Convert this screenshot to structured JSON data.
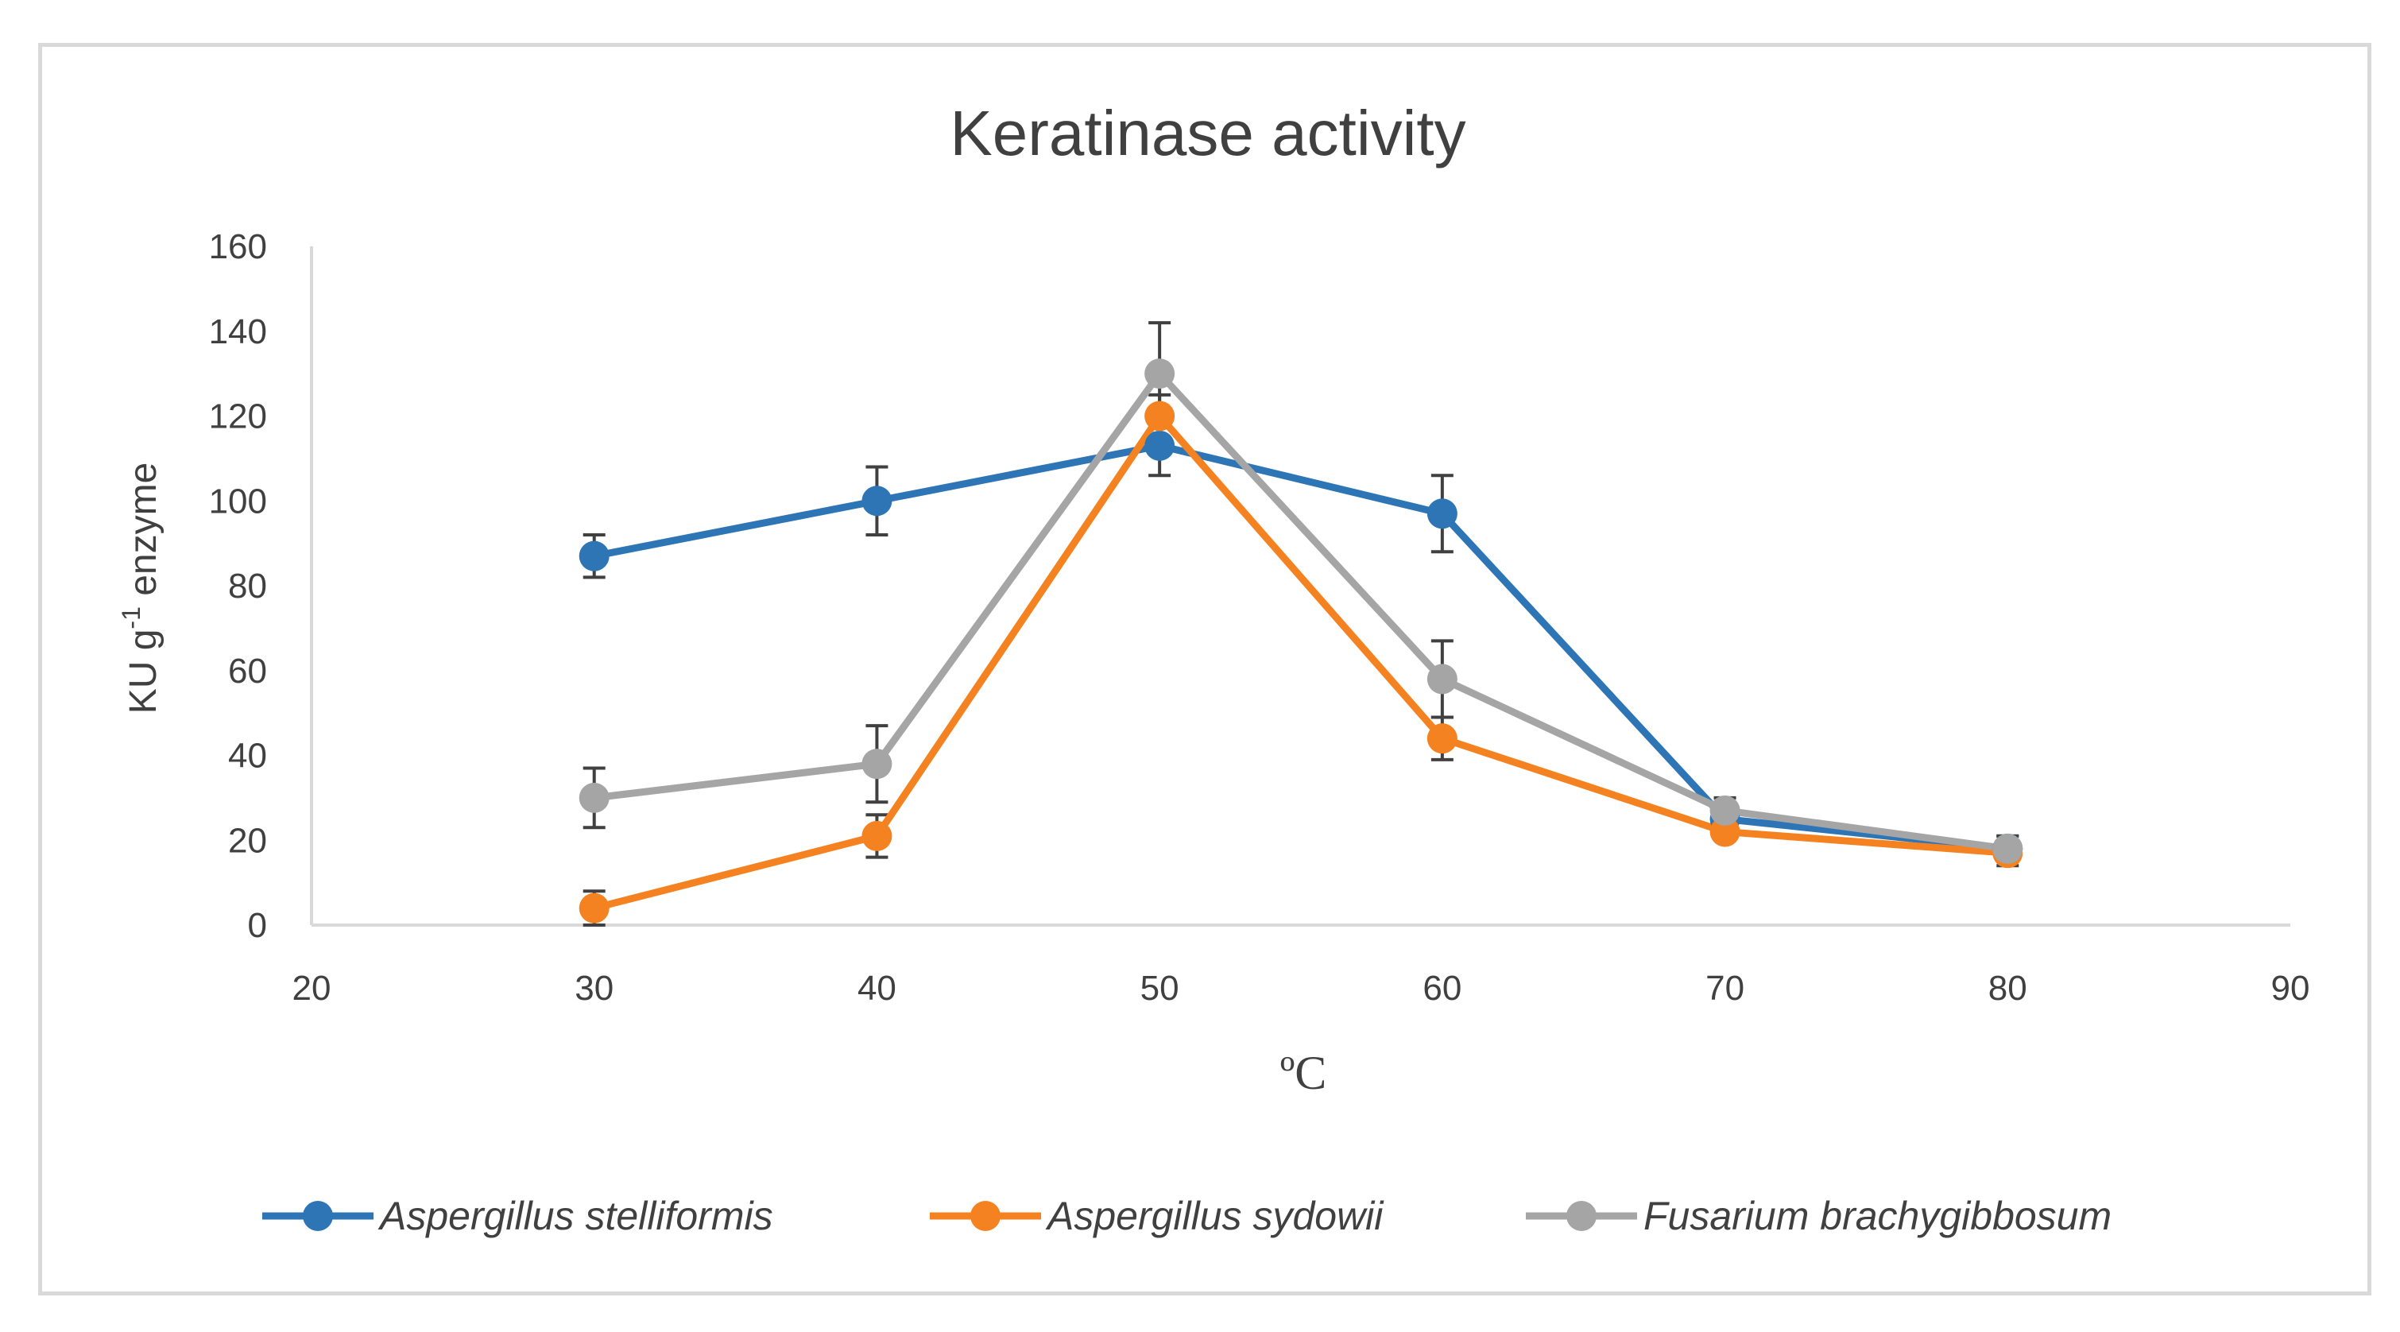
{
  "chart_data": {
    "type": "line",
    "title": "Keratinase activity",
    "xlabel": "ºC",
    "ylabel": {
      "base": "KU g",
      "superscript": "-1",
      "suffix": " enzyme"
    },
    "xlim": [
      20,
      90
    ],
    "ylim": [
      0,
      160
    ],
    "xticks": [
      20,
      30,
      40,
      50,
      60,
      70,
      80,
      90
    ],
    "yticks": [
      0,
      20,
      40,
      60,
      80,
      100,
      120,
      140,
      160
    ],
    "grid": false,
    "legend_position": "bottom",
    "x": [
      30,
      40,
      50,
      60,
      70,
      80
    ],
    "series": [
      {
        "name": "Aspergillus stelliformis",
        "color": "#2E75B6",
        "values": [
          87,
          100,
          113,
          97,
          25,
          18
        ],
        "errors": [
          5,
          8,
          7,
          9,
          3,
          3
        ]
      },
      {
        "name": "Aspergillus sydowii",
        "color": "#F58220",
        "values": [
          4,
          21,
          120,
          44,
          22,
          17
        ],
        "errors": [
          4,
          5,
          5,
          5,
          2,
          3
        ]
      },
      {
        "name": "Fusarium brachygibbosum",
        "color": "#A5A5A5",
        "values": [
          30,
          38,
          130,
          58,
          27,
          18
        ],
        "errors": [
          7,
          9,
          12,
          9,
          3,
          3
        ]
      }
    ],
    "error_bar_color": "#404040"
  },
  "colors": {
    "axis": "#d9d9d9",
    "text": "#404040",
    "frame": "#d9d9d9"
  }
}
